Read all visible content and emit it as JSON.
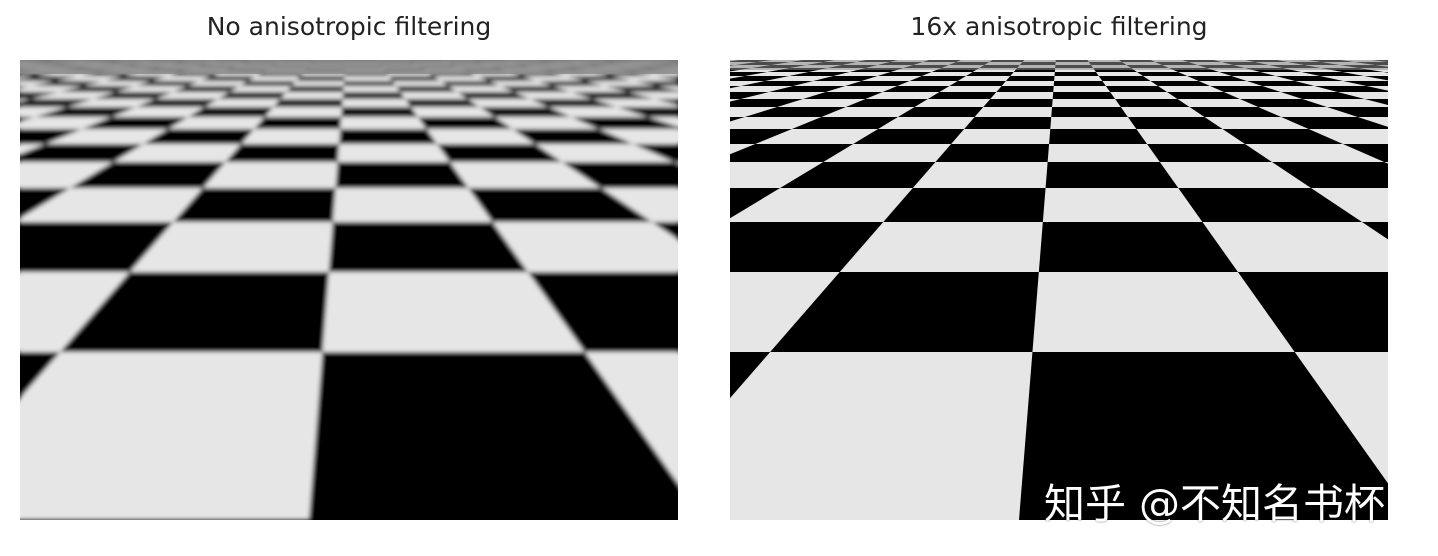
{
  "panels": {
    "left": {
      "title": "No anisotropic filtering",
      "filter": "blurred"
    },
    "right": {
      "title": "16x anisotropic filtering",
      "filter": "sharp"
    }
  },
  "watermark": "知乎 @不知名书杯",
  "colors": {
    "light": "#e6e6e6",
    "dark": "#000000",
    "horizon": "#8a8a8a"
  }
}
